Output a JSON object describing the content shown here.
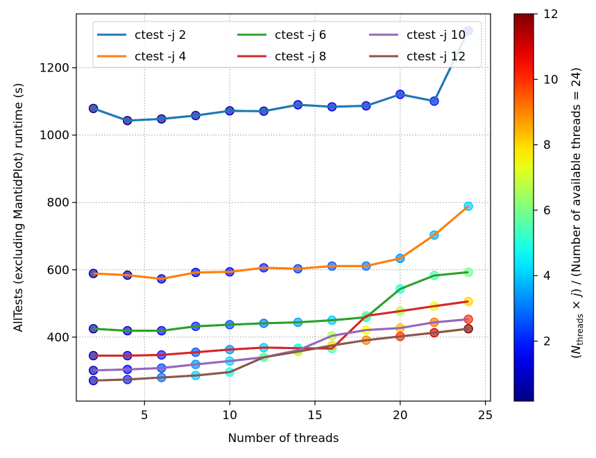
{
  "chart_data": {
    "type": "line",
    "xlabel": "Number of threads",
    "ylabel": "AllTests (excluding MantidPlot) runtime (s)",
    "xlim": [
      1,
      25.3
    ],
    "ylim": [
      210,
      1360
    ],
    "xticks": [
      5,
      10,
      15,
      20,
      25
    ],
    "yticks": [
      400,
      600,
      800,
      1000,
      1200
    ],
    "grid": true,
    "legend_position": "top",
    "x": [
      2,
      4,
      6,
      8,
      10,
      12,
      14,
      16,
      18,
      20,
      22,
      24
    ],
    "series": [
      {
        "name": "ctest -j 2",
        "j": 2,
        "color": "#1f77b4",
        "values": [
          1079,
          1043,
          1048,
          1058,
          1072,
          1071,
          1090,
          1084,
          1087,
          1121,
          1101,
          1310
        ]
      },
      {
        "name": "ctest -j 4",
        "j": 4,
        "color": "#ff7f0e",
        "values": [
          589,
          584,
          573,
          592,
          594,
          606,
          603,
          611,
          611,
          634,
          703,
          789
        ]
      },
      {
        "name": "ctest -j 6",
        "j": 6,
        "color": "#2ca02c",
        "values": [
          425,
          419,
          419,
          432,
          437,
          441,
          444,
          450,
          459,
          543,
          583,
          593
        ]
      },
      {
        "name": "ctest -j 8",
        "j": 8,
        "color": "#d62728",
        "values": [
          345,
          345,
          347,
          355,
          363,
          369,
          367,
          366,
          463,
          477,
          492,
          506
        ]
      },
      {
        "name": "ctest -j 10",
        "j": 10,
        "color": "#9467bd",
        "values": [
          301,
          304,
          308,
          319,
          329,
          340,
          361,
          404,
          421,
          427,
          444,
          453
        ]
      },
      {
        "name": "ctest -j 12",
        "j": 12,
        "color": "#8c564b",
        "values": [
          271,
          274,
          280,
          286,
          296,
          340,
          357,
          375,
          391,
          402,
          413,
          425
        ]
      }
    ],
    "colorbar": {
      "label": "(N_threads × j) / (Number of available threads = 24)",
      "label_parts": [
        "(",
        "N",
        "threads",
        " × ",
        "j",
        ") / (Number of available threads = 24)"
      ],
      "min": 0.1667,
      "max": 12,
      "ticks": [
        "2",
        "4",
        "6",
        "8",
        "10",
        "12"
      ],
      "tick_values": [
        2,
        4,
        6,
        8,
        10,
        12
      ],
      "colormap": "jet"
    }
  }
}
